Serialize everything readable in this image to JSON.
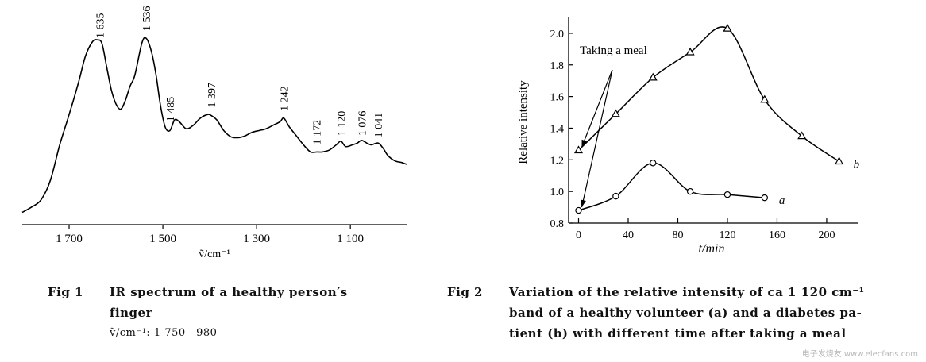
{
  "chart_data": [
    {
      "type": "line",
      "xlabel": "ṽ/cm⁻¹",
      "ylabel": "",
      "x_reversed": true,
      "xlim": [
        1800,
        980
      ],
      "ticks": [
        1700,
        1500,
        1300,
        1100
      ],
      "tick_labels": [
        "1 700",
        "1 500",
        "1 300",
        "1 100"
      ],
      "series": [
        {
          "x": [
            1800,
            1780,
            1760,
            1740,
            1720,
            1700,
            1680,
            1665,
            1650,
            1640,
            1630,
            1620,
            1610,
            1600,
            1590,
            1580,
            1570,
            1560,
            1545,
            1536,
            1525,
            1515,
            1505,
            1495,
            1485,
            1475,
            1465,
            1450,
            1435,
            1420,
            1405,
            1397,
            1385,
            1370,
            1355,
            1340,
            1325,
            1310,
            1295,
            1280,
            1265,
            1250,
            1242,
            1230,
            1215,
            1200,
            1185,
            1172,
            1160,
            1145,
            1130,
            1120,
            1110,
            1095,
            1085,
            1076,
            1065,
            1055,
            1041,
            1030,
            1020,
            1005,
            990,
            980
          ],
          "y": [
            0.02,
            0.05,
            0.09,
            0.2,
            0.4,
            0.57,
            0.75,
            0.9,
            0.98,
            0.99,
            0.97,
            0.84,
            0.71,
            0.63,
            0.6,
            0.65,
            0.73,
            0.79,
            0.97,
            1.0,
            0.93,
            0.8,
            0.62,
            0.5,
            0.48,
            0.54,
            0.53,
            0.49,
            0.51,
            0.55,
            0.57,
            0.565,
            0.54,
            0.48,
            0.445,
            0.44,
            0.45,
            0.47,
            0.48,
            0.49,
            0.51,
            0.53,
            0.55,
            0.5,
            0.45,
            0.4,
            0.36,
            0.36,
            0.36,
            0.37,
            0.4,
            0.42,
            0.39,
            0.4,
            0.41,
            0.425,
            0.41,
            0.4,
            0.41,
            0.38,
            0.34,
            0.31,
            0.3,
            0.29
          ]
        }
      ],
      "peak_labels": [
        {
          "x": 1635,
          "y": 1.0,
          "label": "1 635"
        },
        {
          "x": 1536,
          "y": 1.04,
          "label": "1 536"
        },
        {
          "x": 1485,
          "y": 0.53,
          "label": "1 485"
        },
        {
          "x": 1397,
          "y": 0.61,
          "label": "1 397"
        },
        {
          "x": 1242,
          "y": 0.59,
          "label": "1 242"
        },
        {
          "x": 1172,
          "y": 0.4,
          "label": "1 172"
        },
        {
          "x": 1120,
          "y": 0.45,
          "label": "1 120"
        },
        {
          "x": 1076,
          "y": 0.45,
          "label": "1 076"
        },
        {
          "x": 1041,
          "y": 0.44,
          "label": "1 041"
        }
      ]
    },
    {
      "type": "line",
      "xlabel": "t/min",
      "ylabel": "Relative intensity",
      "xlim": [
        -8,
        225
      ],
      "ylim": [
        0.8,
        2.1
      ],
      "xticks": [
        0,
        40,
        80,
        120,
        160,
        200
      ],
      "yticks": [
        0.8,
        1.0,
        1.2,
        1.4,
        1.6,
        1.8,
        2.0
      ],
      "ytick_labels": [
        "0.8",
        "1.0",
        "1.2",
        "1.4",
        "1.6",
        "1.8",
        "2.0"
      ],
      "series": [
        {
          "name": "a",
          "marker": "circle",
          "x": [
            0,
            30,
            60,
            90,
            120,
            150
          ],
          "y": [
            0.88,
            0.97,
            1.18,
            1.0,
            0.98,
            0.96
          ]
        },
        {
          "name": "b",
          "marker": "triangle",
          "x": [
            0,
            30,
            60,
            90,
            120,
            150,
            180,
            210
          ],
          "y": [
            1.26,
            1.49,
            1.72,
            1.88,
            2.03,
            1.58,
            1.35,
            1.19
          ]
        }
      ],
      "annotation": {
        "text": "Taking a meal",
        "arrows_to": [
          {
            "x": 0,
            "y": 1.26
          },
          {
            "x": 0,
            "y": 0.88
          }
        ]
      }
    }
  ],
  "captions": {
    "fig1": {
      "number": "Fig 1",
      "text_line1": "IR spectrum of a healthy person′s",
      "text_line2": "finger",
      "subnote": "ṽ/cm⁻¹:  1 750—980"
    },
    "fig2": {
      "number": "Fig 2",
      "text_line1": "Variation of the relative intensity of ca  1 120 cm⁻¹",
      "text_line2": "band of a healthy volunteer (a) and a diabetes pa-",
      "text_line3": "tient (b) with different time after taking a meal"
    }
  },
  "watermark": "电子发烧友 www.elecfans.com"
}
